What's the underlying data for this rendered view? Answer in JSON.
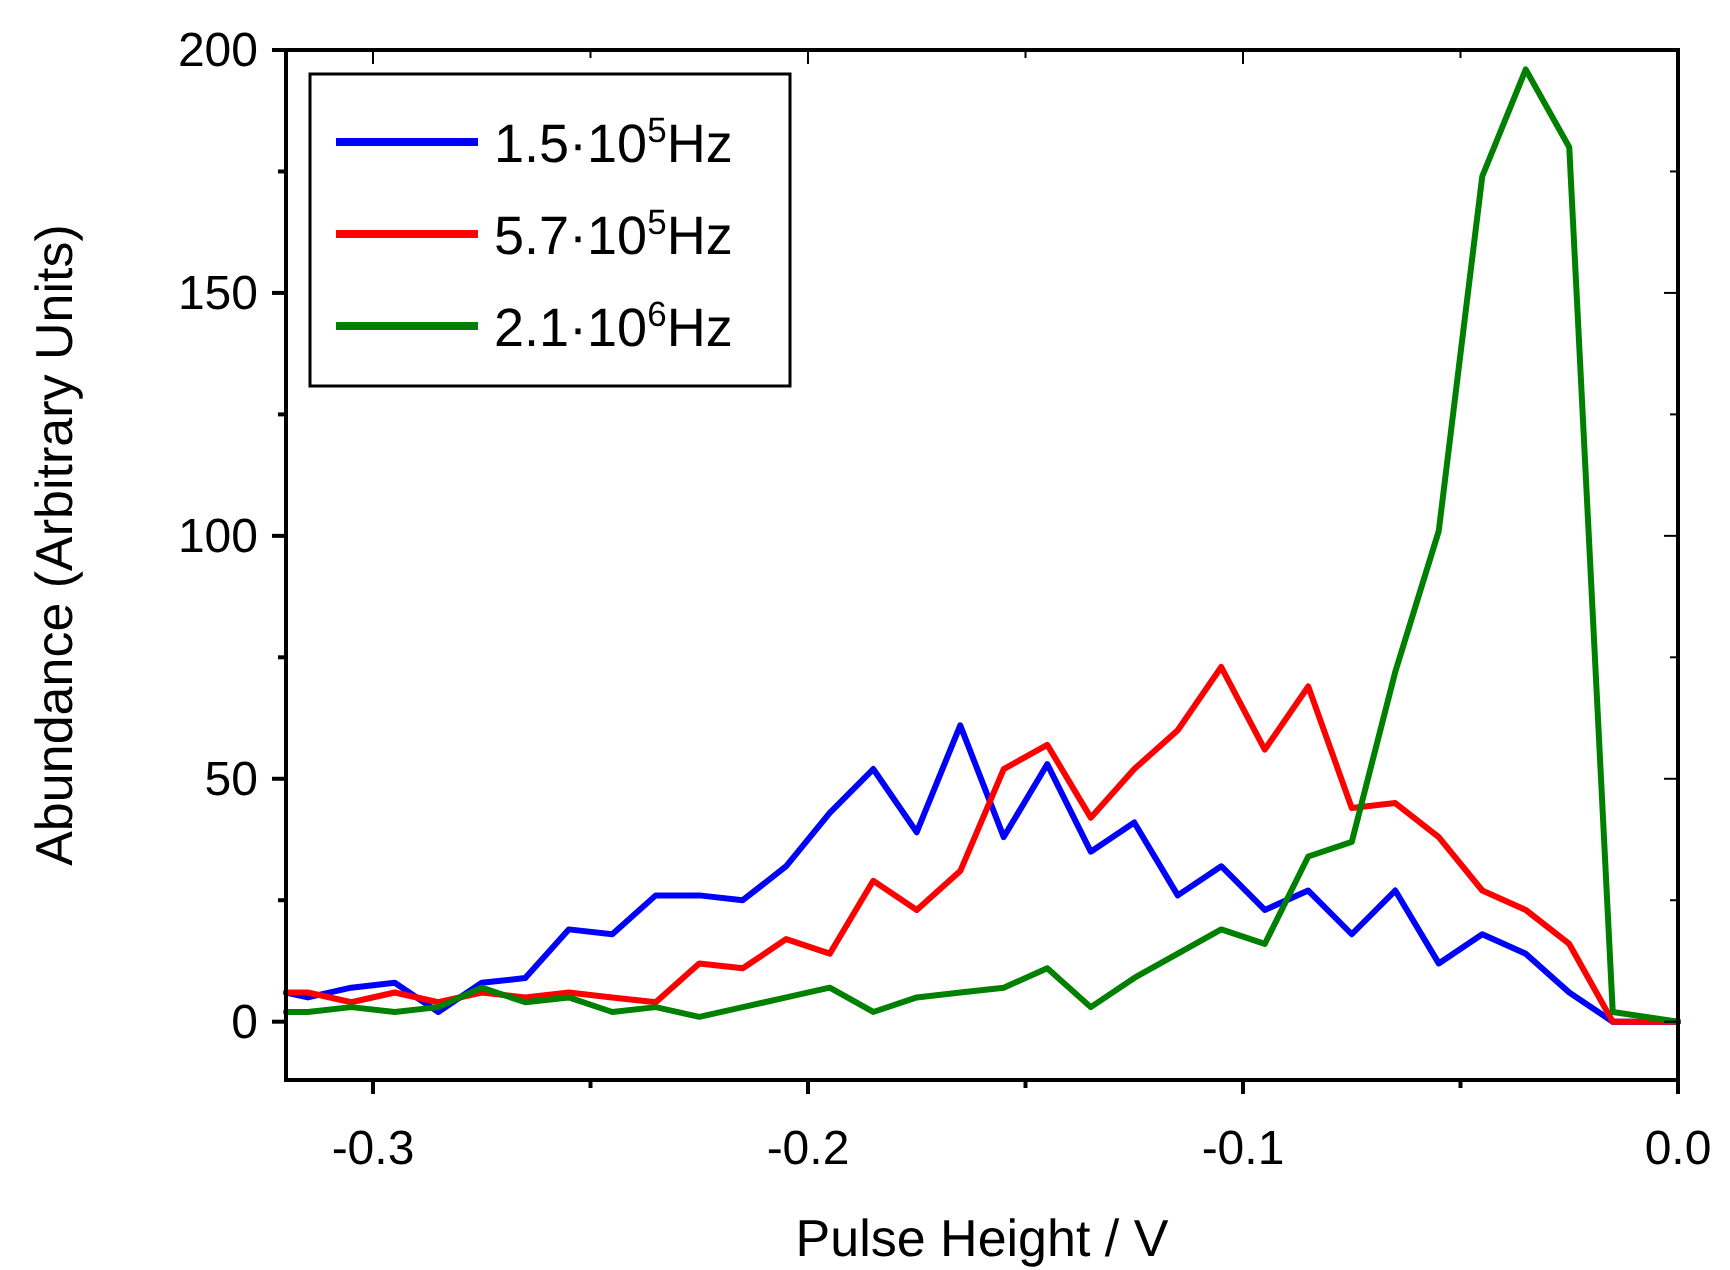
{
  "chart_data": {
    "type": "line",
    "xlabel": "Pulse Height / V",
    "ylabel": "Abundance (Arbitrary Units)",
    "x": [
      -0.32,
      -0.315,
      -0.305,
      -0.295,
      -0.285,
      -0.275,
      -0.265,
      -0.255,
      -0.245,
      -0.235,
      -0.225,
      -0.215,
      -0.205,
      -0.195,
      -0.185,
      -0.175,
      -0.165,
      -0.155,
      -0.145,
      -0.135,
      -0.125,
      -0.115,
      -0.105,
      -0.095,
      -0.085,
      -0.075,
      -0.065,
      -0.055,
      -0.045,
      -0.035,
      -0.025,
      -0.015,
      0
    ],
    "series": [
      {
        "name": "1.5·10$^{5}$Hz",
        "color": "#0000ff",
        "values": [
          6,
          5,
          7,
          8,
          2,
          8,
          9,
          19,
          18,
          26,
          26,
          25,
          32,
          43,
          52,
          39,
          61,
          38,
          53,
          35,
          41,
          26,
          32,
          23,
          27,
          18,
          27,
          12,
          18,
          14,
          6,
          0,
          0
        ]
      },
      {
        "name": "5.7·10$^{5}$Hz",
        "color": "#ff0000",
        "values": [
          6,
          6,
          4,
          6,
          4,
          6,
          5,
          6,
          5,
          4,
          12,
          11,
          17,
          14,
          29,
          23,
          31,
          52,
          57,
          42,
          52,
          60,
          73,
          56,
          69,
          44,
          45,
          38,
          27,
          23,
          16,
          0,
          0
        ]
      },
      {
        "name": "2.1·10$^{6}$Hz",
        "color": "#008000",
        "values": [
          2,
          2,
          3,
          2,
          3,
          7,
          4,
          5,
          2,
          3,
          1,
          3,
          5,
          7,
          2,
          5,
          6,
          7,
          11,
          3,
          9,
          14,
          19,
          16,
          34,
          37,
          72,
          101,
          174,
          196,
          180,
          2,
          0
        ]
      }
    ],
    "xlim": [
      -0.32,
      0
    ],
    "xticks": [
      {
        "value": -0.3,
        "label": "-0.3"
      },
      {
        "value": -0.25,
        "label": null
      },
      {
        "value": -0.2,
        "label": "-0.2"
      },
      {
        "value": -0.15,
        "label": null
      },
      {
        "value": -0.1,
        "label": "-0.1"
      },
      {
        "value": -0.05,
        "label": null
      },
      {
        "value": 0,
        "label": "0.0"
      }
    ],
    "ylim": [
      -12,
      200
    ],
    "yticks": [
      0,
      {
        "value": 25,
        "label": null
      },
      50,
      {
        "value": 75,
        "label": null
      },
      100,
      {
        "value": 125,
        "label": null
      },
      150,
      {
        "value": 175,
        "label": null
      },
      200
    ],
    "legend": "top left",
    "line_style": "solid",
    "grid": false
  }
}
